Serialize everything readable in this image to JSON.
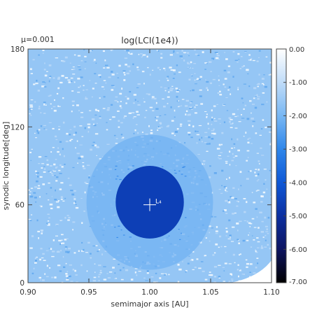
{
  "figure": {
    "mu_label": "μ=0.001"
  },
  "chart_data": {
    "type": "heatmap",
    "title": "log(LCI(1e4))",
    "xlabel": "semimajor axis [AU]",
    "ylabel": "synodic longitude[deg]",
    "xlim": [
      0.9,
      1.1
    ],
    "ylim": [
      0,
      180
    ],
    "x_ticks": [
      "0.90",
      "0.95",
      "1.00",
      "1.05",
      "1.10"
    ],
    "y_ticks": [
      "0",
      "60",
      "120",
      "180"
    ],
    "colorbar": {
      "range": [
        -7.0,
        0.0
      ],
      "ticks": [
        "0.00",
        "-1.00",
        "-2.00",
        "-3.00",
        "-4.00",
        "-5.00",
        "-6.00",
        "-7.00"
      ],
      "colors": [
        "#000000",
        "#0d1460",
        "#0c2fa0",
        "#0f58d6",
        "#2f86ea",
        "#78b7f3",
        "#c0dcf8",
        "#ffffff"
      ]
    },
    "background_value": -1.6,
    "stable_region": {
      "center": [
        1.0,
        62
      ],
      "semi_axes": [
        0.028,
        28
      ],
      "value": -4.6
    },
    "ring_region": {
      "center": [
        1.0,
        62
      ],
      "semi_axes": [
        0.052,
        52
      ],
      "value": -2.1
    },
    "marker": {
      "label": "L₄",
      "x": 1.0,
      "y": 60
    }
  }
}
